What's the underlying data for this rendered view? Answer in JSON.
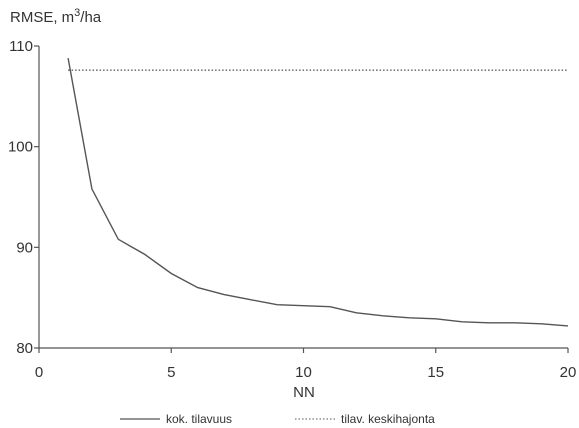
{
  "chart_data": {
    "type": "line",
    "ylabel_parts": {
      "prefix": "RMSE,  m",
      "sup": "3",
      "suffix": "/ha"
    },
    "xlabel": "NN",
    "xlim": [
      0,
      20
    ],
    "ylim": [
      80,
      110
    ],
    "xticks": [
      0,
      5,
      10,
      15,
      20
    ],
    "yticks": [
      80,
      90,
      100,
      110
    ],
    "grid": false,
    "legend_position": "bottom",
    "series": [
      {
        "name": "kok. tilavuus",
        "style": "solid",
        "color": "#555555",
        "x": [
          1.1,
          2,
          3,
          4,
          5,
          6,
          7,
          8,
          9,
          10,
          11,
          12,
          13,
          14,
          15,
          16,
          17,
          18,
          19,
          20
        ],
        "y": [
          108.8,
          95.8,
          90.8,
          89.3,
          87.4,
          86.0,
          85.3,
          84.8,
          84.3,
          84.2,
          84.1,
          83.5,
          83.2,
          83.0,
          82.9,
          82.6,
          82.5,
          82.5,
          82.4,
          82.2
        ]
      },
      {
        "name": "tilav. keskihajonta",
        "style": "dotted",
        "color": "#777777",
        "x": [
          1.1,
          20
        ],
        "y": [
          107.6,
          107.6
        ]
      }
    ]
  }
}
